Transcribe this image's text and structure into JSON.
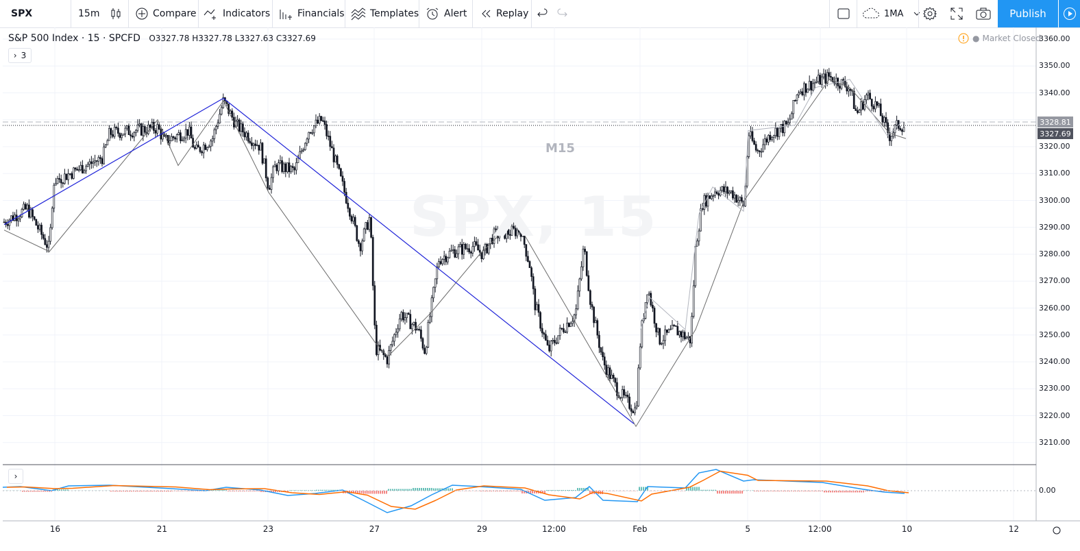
{
  "toolbar": {
    "symbol": "SPX",
    "interval": "15m",
    "compare": "Compare",
    "indicators": "Indicators",
    "financials": "Financials",
    "templates": "Templates",
    "alert": "Alert",
    "replay": "Replay",
    "layout_name": "1MA",
    "publish": "Publish"
  },
  "legend": {
    "title": "S&P 500 Index · 15 · SPCFD",
    "open": "O3327.78",
    "high": "H3327.78",
    "low": "L3327.63",
    "close": "C3327.69",
    "indicators_count": "3"
  },
  "status": {
    "market": "Market Closed"
  },
  "watermark": {
    "interval": "M15",
    "symbol": "SPX, 15"
  },
  "price_axis": {
    "labels": [
      "3360.00",
      "3350.00",
      "3340.00",
      "3330.00",
      "3320.00",
      "3310.00",
      "3300.00",
      "3290.00",
      "3280.00",
      "3270.00",
      "3260.00",
      "3250.00",
      "3240.00",
      "3230.00",
      "3220.00",
      "3210.00"
    ],
    "tag_upper": "3328.81",
    "tag_last": "3327.69",
    "osc_zero": "0.00"
  },
  "time_axis": {
    "labels": [
      "16",
      "21",
      "23",
      "27",
      "29",
      "12:00",
      "Feb",
      "5",
      "12:00",
      "10",
      "12"
    ]
  },
  "colors": {
    "accent": "#2196f3",
    "trend_line": "#1e22d8",
    "zigzag": "#6b6b6b",
    "macd": "#2196f3",
    "signal": "#ff6d00",
    "hist_up": "#26a69a",
    "hist_down": "#ef5350",
    "alert_orange": "#ff9800"
  },
  "chart_data": {
    "type": "line",
    "title": "S&P 500 Index · 15 · SPCFD",
    "ylim": [
      3205,
      3365
    ],
    "x": [
      "16",
      "21",
      "23",
      "27",
      "29",
      "12:00",
      "Feb",
      "5",
      "12:00",
      "10",
      "12"
    ],
    "series": [
      {
        "name": "",
        "values": [
          3290,
          3280,
          3337,
          3305,
          3240,
          3293,
          3216,
          3300,
          3346,
          3322,
          3327.69
        ]
      }
    ]
  }
}
